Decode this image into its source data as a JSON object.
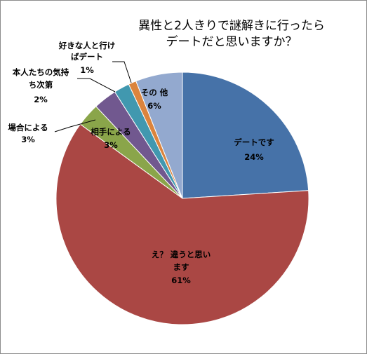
{
  "chart_data": {
    "type": "pie",
    "title": "異性と2人きりで謎解きに行ったら\nデートだと思いますか？",
    "slices": [
      {
        "label": "デートです",
        "percent_label": "24%",
        "value": 24,
        "color": "#4672a8"
      },
      {
        "label": "え？ 違うと思い\nます",
        "percent_label": "61%",
        "value": 61,
        "color": "#aa4744"
      },
      {
        "label": "相手による",
        "percent_label": "3%",
        "value": 3,
        "color": "#8aa54a"
      },
      {
        "label": "場合による",
        "percent_label": "3%",
        "value": 3,
        "color": "#71588f"
      },
      {
        "label": "本人たちの気持\nち次第",
        "percent_label": "2%",
        "value": 2,
        "color": "#4198af"
      },
      {
        "label": "好きな人と行け\nばデート",
        "percent_label": "1%",
        "value": 1,
        "color": "#db843d"
      },
      {
        "label": "その 他",
        "percent_label": "6%",
        "value": 6,
        "color": "#93a9cf"
      }
    ],
    "start_angle": "12 o'clock",
    "direction": "clockwise",
    "legend": "none"
  }
}
